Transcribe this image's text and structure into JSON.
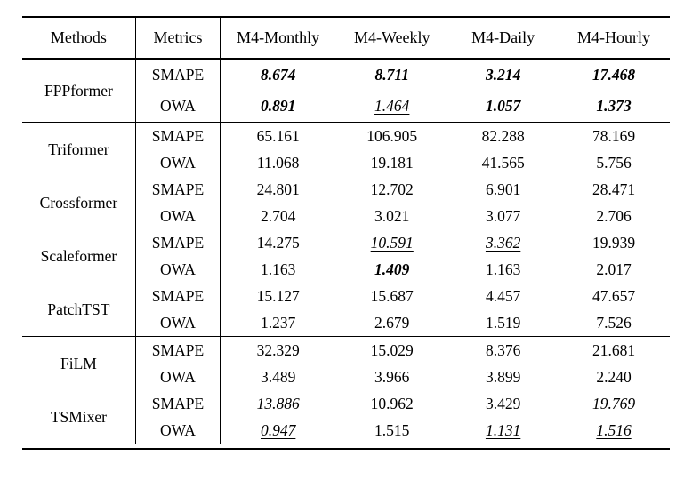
{
  "page": {
    "background_color": "#ffffff",
    "text_color": "#000000"
  },
  "table": {
    "headers": [
      "Methods",
      "Metrics",
      "M4-Monthly",
      "M4-Weekly",
      "M4-Daily",
      "M4-Hourly"
    ],
    "style_legend": {
      "bold-italic": "best result",
      "italic-underline": "second best result"
    },
    "groups": [
      {
        "methods": [
          {
            "method": "FPPformer",
            "rows": [
              {
                "metric": "SMAPE",
                "values": [
                  {
                    "v": "8.674",
                    "s": "bold-italic"
                  },
                  {
                    "v": "8.711",
                    "s": "bold-italic"
                  },
                  {
                    "v": "3.214",
                    "s": "bold-italic"
                  },
                  {
                    "v": "17.468",
                    "s": "bold-italic"
                  }
                ]
              },
              {
                "metric": "OWA",
                "values": [
                  {
                    "v": "0.891",
                    "s": "bold-italic"
                  },
                  {
                    "v": "1.464",
                    "s": "italic-underline"
                  },
                  {
                    "v": "1.057",
                    "s": "bold-italic"
                  },
                  {
                    "v": "1.373",
                    "s": "bold-italic"
                  }
                ]
              }
            ]
          }
        ]
      },
      {
        "methods": [
          {
            "method": "Triformer",
            "rows": [
              {
                "metric": "SMAPE",
                "values": [
                  {
                    "v": "65.161",
                    "s": "normal"
                  },
                  {
                    "v": "106.905",
                    "s": "normal"
                  },
                  {
                    "v": "82.288",
                    "s": "normal"
                  },
                  {
                    "v": "78.169",
                    "s": "normal"
                  }
                ]
              },
              {
                "metric": "OWA",
                "values": [
                  {
                    "v": "11.068",
                    "s": "normal"
                  },
                  {
                    "v": "19.181",
                    "s": "normal"
                  },
                  {
                    "v": "41.565",
                    "s": "normal"
                  },
                  {
                    "v": "5.756",
                    "s": "normal"
                  }
                ]
              }
            ]
          },
          {
            "method": "Crossformer",
            "rows": [
              {
                "metric": "SMAPE",
                "values": [
                  {
                    "v": "24.801",
                    "s": "normal"
                  },
                  {
                    "v": "12.702",
                    "s": "normal"
                  },
                  {
                    "v": "6.901",
                    "s": "normal"
                  },
                  {
                    "v": "28.471",
                    "s": "normal"
                  }
                ]
              },
              {
                "metric": "OWA",
                "values": [
                  {
                    "v": "2.704",
                    "s": "normal"
                  },
                  {
                    "v": "3.021",
                    "s": "normal"
                  },
                  {
                    "v": "3.077",
                    "s": "normal"
                  },
                  {
                    "v": "2.706",
                    "s": "normal"
                  }
                ]
              }
            ]
          },
          {
            "method": "Scaleformer",
            "rows": [
              {
                "metric": "SMAPE",
                "values": [
                  {
                    "v": "14.275",
                    "s": "normal"
                  },
                  {
                    "v": "10.591",
                    "s": "italic-underline"
                  },
                  {
                    "v": "3.362",
                    "s": "italic-underline"
                  },
                  {
                    "v": "19.939",
                    "s": "normal"
                  }
                ]
              },
              {
                "metric": "OWA",
                "values": [
                  {
                    "v": "1.163",
                    "s": "normal"
                  },
                  {
                    "v": "1.409",
                    "s": "bold-italic"
                  },
                  {
                    "v": "1.163",
                    "s": "normal"
                  },
                  {
                    "v": "2.017",
                    "s": "normal"
                  }
                ]
              }
            ]
          },
          {
            "method": "PatchTST",
            "rows": [
              {
                "metric": "SMAPE",
                "values": [
                  {
                    "v": "15.127",
                    "s": "normal"
                  },
                  {
                    "v": "15.687",
                    "s": "normal"
                  },
                  {
                    "v": "4.457",
                    "s": "normal"
                  },
                  {
                    "v": "47.657",
                    "s": "normal"
                  }
                ]
              },
              {
                "metric": "OWA",
                "values": [
                  {
                    "v": "1.237",
                    "s": "normal"
                  },
                  {
                    "v": "2.679",
                    "s": "normal"
                  },
                  {
                    "v": "1.519",
                    "s": "normal"
                  },
                  {
                    "v": "7.526",
                    "s": "normal"
                  }
                ]
              }
            ]
          }
        ]
      },
      {
        "methods": [
          {
            "method": "FiLM",
            "rows": [
              {
                "metric": "SMAPE",
                "values": [
                  {
                    "v": "32.329",
                    "s": "normal"
                  },
                  {
                    "v": "15.029",
                    "s": "normal"
                  },
                  {
                    "v": "8.376",
                    "s": "normal"
                  },
                  {
                    "v": "21.681",
                    "s": "normal"
                  }
                ]
              },
              {
                "metric": "OWA",
                "values": [
                  {
                    "v": "3.489",
                    "s": "normal"
                  },
                  {
                    "v": "3.966",
                    "s": "normal"
                  },
                  {
                    "v": "3.899",
                    "s": "normal"
                  },
                  {
                    "v": "2.240",
                    "s": "normal"
                  }
                ]
              }
            ]
          },
          {
            "method": "TSMixer",
            "rows": [
              {
                "metric": "SMAPE",
                "values": [
                  {
                    "v": "13.886",
                    "s": "italic-underline"
                  },
                  {
                    "v": "10.962",
                    "s": "normal"
                  },
                  {
                    "v": "3.429",
                    "s": "normal"
                  },
                  {
                    "v": "19.769",
                    "s": "italic-underline"
                  }
                ]
              },
              {
                "metric": "OWA",
                "values": [
                  {
                    "v": "0.947",
                    "s": "italic-underline"
                  },
                  {
                    "v": "1.515",
                    "s": "normal"
                  },
                  {
                    "v": "1.131",
                    "s": "italic-underline"
                  },
                  {
                    "v": "1.516",
                    "s": "italic-underline"
                  }
                ]
              }
            ]
          }
        ]
      }
    ]
  }
}
